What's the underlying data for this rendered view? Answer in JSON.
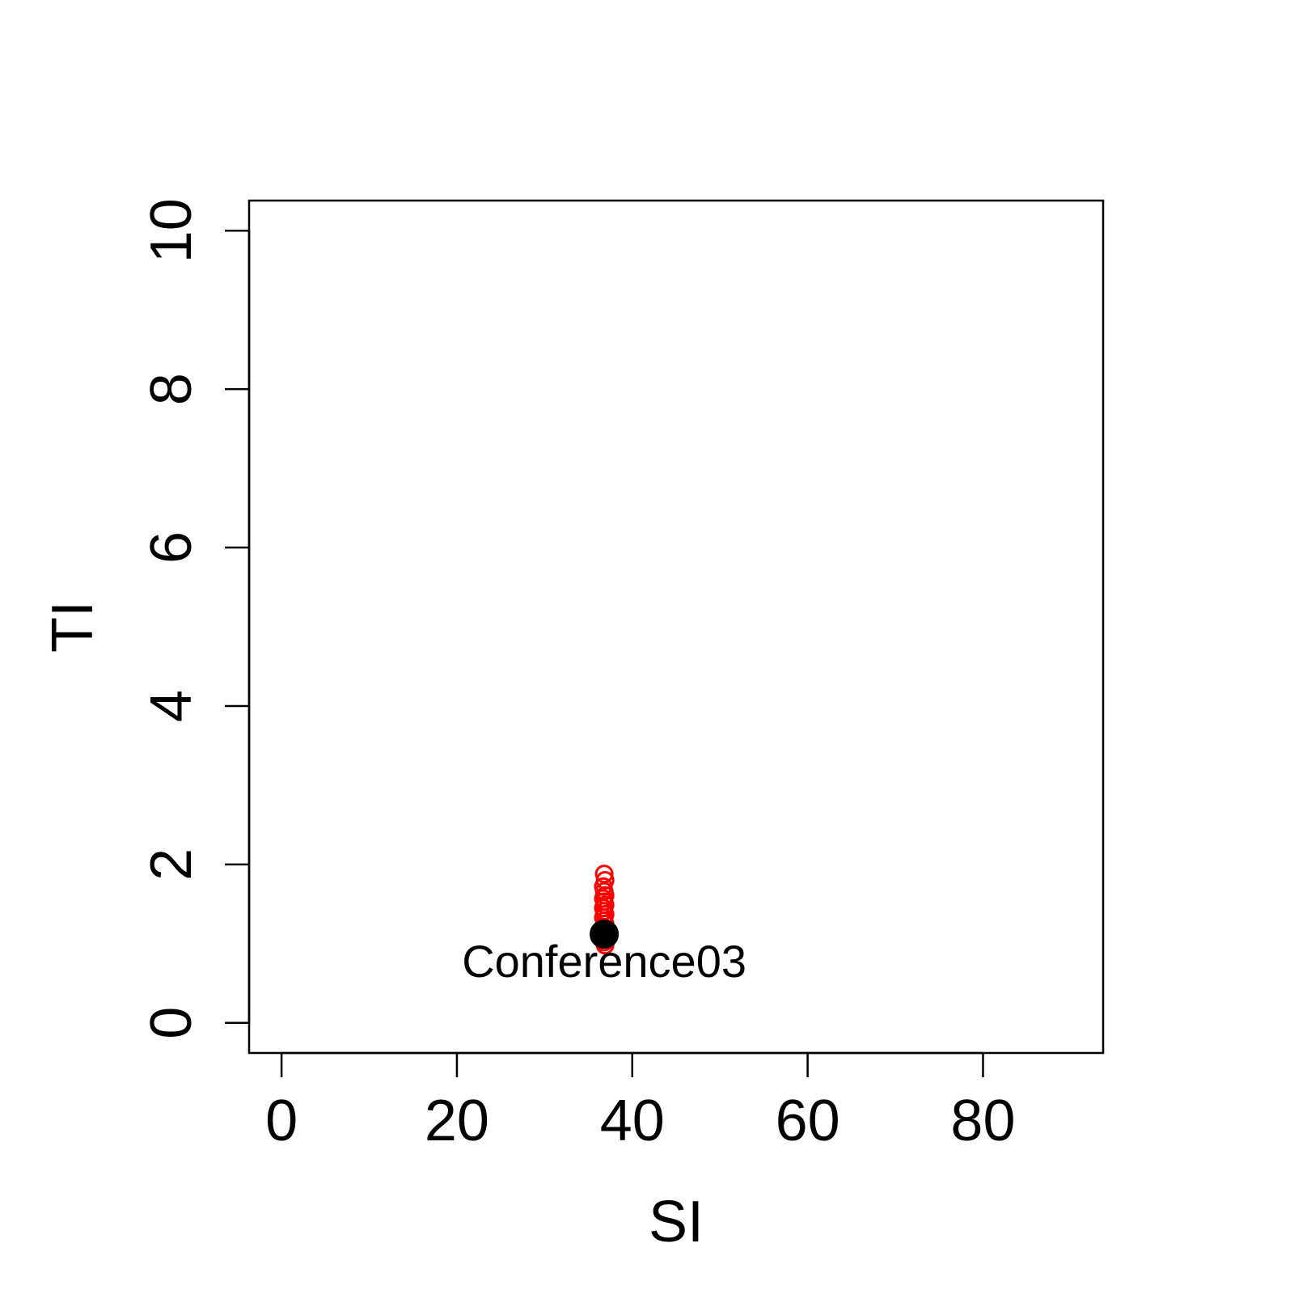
{
  "chart_data": {
    "type": "scatter",
    "xlabel": "SI",
    "ylabel": "TI",
    "xlim": [
      -3.7,
      93.7
    ],
    "ylim": [
      -0.38,
      10.38
    ],
    "x_ticks": [
      0,
      20,
      40,
      60,
      80
    ],
    "y_ticks": [
      0,
      2,
      4,
      6,
      8,
      10
    ],
    "grid": false,
    "series": [
      {
        "marker": "open-circle",
        "color": "#ff0000",
        "points": [
          {
            "x": 36.8,
            "y": 1.88
          },
          {
            "x": 36.9,
            "y": 1.8
          },
          {
            "x": 36.7,
            "y": 1.72
          },
          {
            "x": 36.8,
            "y": 1.66
          },
          {
            "x": 36.9,
            "y": 1.61
          },
          {
            "x": 36.7,
            "y": 1.57
          },
          {
            "x": 36.8,
            "y": 1.53
          },
          {
            "x": 36.9,
            "y": 1.49
          },
          {
            "x": 36.7,
            "y": 1.45
          },
          {
            "x": 36.8,
            "y": 1.41
          },
          {
            "x": 36.9,
            "y": 1.37
          },
          {
            "x": 36.7,
            "y": 1.33
          },
          {
            "x": 36.8,
            "y": 1.29
          },
          {
            "x": 36.9,
            "y": 1.25
          },
          {
            "x": 36.7,
            "y": 1.21
          },
          {
            "x": 36.8,
            "y": 1.17
          },
          {
            "x": 36.8,
            "y": 1.07
          },
          {
            "x": 36.8,
            "y": 1.02
          },
          {
            "x": 36.9,
            "y": 0.98
          }
        ]
      },
      {
        "marker": "filled-circle",
        "color": "#000000",
        "points": [
          {
            "x": 36.8,
            "y": 1.12
          }
        ]
      }
    ],
    "annotations": [
      {
        "text": "Conference03",
        "x": 36.8,
        "y": 0.58
      }
    ]
  }
}
